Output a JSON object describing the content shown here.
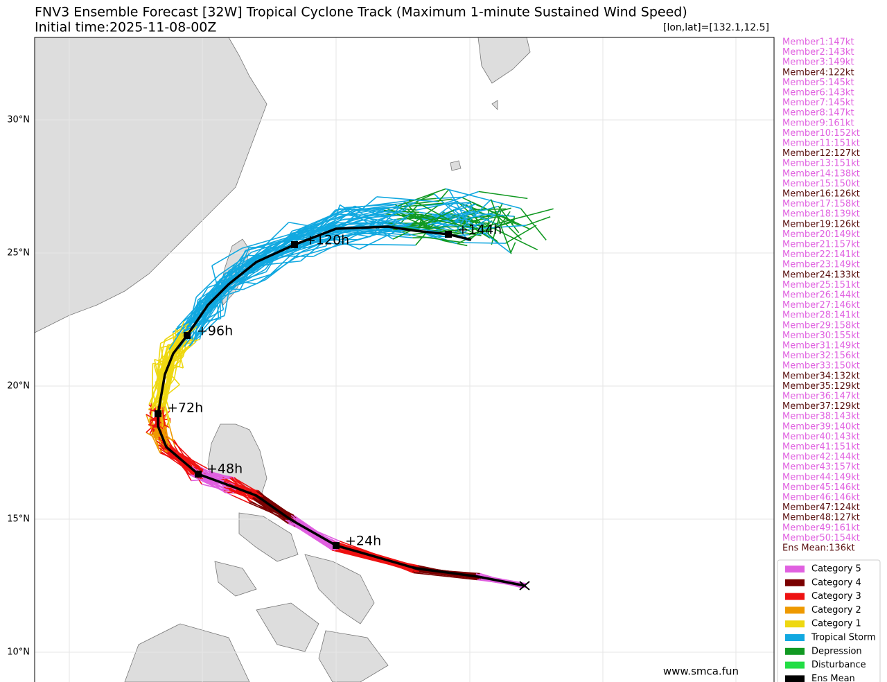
{
  "header": {
    "title": "FNV3 Ensemble Forecast [32W] Tropical Cyclone Track (Maximum 1-minute Sustained Wind Speed)",
    "subtitle": "Initial time:2025-11-08-00Z",
    "coords": "[lon,lat]=[132.1,12.5]"
  },
  "lat_labels": [
    "30°N",
    "25°N",
    "20°N",
    "15°N",
    "10°N"
  ],
  "track_labels": [
    "+24h",
    "+48h",
    "+72h",
    "+96h",
    "+120h",
    "+144h"
  ],
  "members": [
    {
      "text": "Member1:147kt",
      "color": "#e060e0"
    },
    {
      "text": "Member2:143kt",
      "color": "#e060e0"
    },
    {
      "text": "Member3:149kt",
      "color": "#e060e0"
    },
    {
      "text": "Member4:122kt",
      "color": "#5a1010"
    },
    {
      "text": "Member5:145kt",
      "color": "#e060e0"
    },
    {
      "text": "Member6:143kt",
      "color": "#e060e0"
    },
    {
      "text": "Member7:145kt",
      "color": "#e060e0"
    },
    {
      "text": "Member8:147kt",
      "color": "#e060e0"
    },
    {
      "text": "Member9:161kt",
      "color": "#e060e0"
    },
    {
      "text": "Member10:152kt",
      "color": "#e060e0"
    },
    {
      "text": "Member11:151kt",
      "color": "#e060e0"
    },
    {
      "text": "Member12:127kt",
      "color": "#5a1010"
    },
    {
      "text": "Member13:151kt",
      "color": "#e060e0"
    },
    {
      "text": "Member14:138kt",
      "color": "#e060e0"
    },
    {
      "text": "Member15:150kt",
      "color": "#e060e0"
    },
    {
      "text": "Member16:126kt",
      "color": "#5a1010"
    },
    {
      "text": "Member17:158kt",
      "color": "#e060e0"
    },
    {
      "text": "Member18:139kt",
      "color": "#e060e0"
    },
    {
      "text": "Member19:126kt",
      "color": "#5a1010"
    },
    {
      "text": "Member20:149kt",
      "color": "#e060e0"
    },
    {
      "text": "Member21:157kt",
      "color": "#e060e0"
    },
    {
      "text": "Member22:141kt",
      "color": "#e060e0"
    },
    {
      "text": "Member23:149kt",
      "color": "#e060e0"
    },
    {
      "text": "Member24:133kt",
      "color": "#5a1010"
    },
    {
      "text": "Member25:151kt",
      "color": "#e060e0"
    },
    {
      "text": "Member26:144kt",
      "color": "#e060e0"
    },
    {
      "text": "Member27:146kt",
      "color": "#e060e0"
    },
    {
      "text": "Member28:141kt",
      "color": "#e060e0"
    },
    {
      "text": "Member29:158kt",
      "color": "#e060e0"
    },
    {
      "text": "Member30:155kt",
      "color": "#e060e0"
    },
    {
      "text": "Member31:149kt",
      "color": "#e060e0"
    },
    {
      "text": "Member32:156kt",
      "color": "#e060e0"
    },
    {
      "text": "Member33:150kt",
      "color": "#e060e0"
    },
    {
      "text": "Member34:132kt",
      "color": "#5a1010"
    },
    {
      "text": "Member35:129kt",
      "color": "#5a1010"
    },
    {
      "text": "Member36:147kt",
      "color": "#e060e0"
    },
    {
      "text": "Member37:129kt",
      "color": "#5a1010"
    },
    {
      "text": "Member38:143kt",
      "color": "#e060e0"
    },
    {
      "text": "Member39:140kt",
      "color": "#e060e0"
    },
    {
      "text": "Member40:143kt",
      "color": "#e060e0"
    },
    {
      "text": "Member41:151kt",
      "color": "#e060e0"
    },
    {
      "text": "Member42:144kt",
      "color": "#e060e0"
    },
    {
      "text": "Member43:157kt",
      "color": "#e060e0"
    },
    {
      "text": "Member44:149kt",
      "color": "#e060e0"
    },
    {
      "text": "Member45:146kt",
      "color": "#e060e0"
    },
    {
      "text": "Member46:146kt",
      "color": "#e060e0"
    },
    {
      "text": "Member47:124kt",
      "color": "#5a1010"
    },
    {
      "text": "Member48:127kt",
      "color": "#5a1010"
    },
    {
      "text": "Member49:161kt",
      "color": "#e060e0"
    },
    {
      "text": "Member50:154kt",
      "color": "#e060e0"
    }
  ],
  "ens_mean": {
    "text": "Ens Mean:136kt",
    "color": "#5a1010"
  },
  "legend": [
    {
      "label": "Category 5",
      "color": "#e060e0"
    },
    {
      "label": "Category 4",
      "color": "#7a0000"
    },
    {
      "label": "Category 3",
      "color": "#ee1111"
    },
    {
      "label": "Category 2",
      "color": "#ee9900"
    },
    {
      "label": "Category 1",
      "color": "#eed811"
    },
    {
      "label": "Tropical Storm",
      "color": "#11a8e0"
    },
    {
      "label": "Depression",
      "color": "#119922"
    },
    {
      "label": "Disturbance",
      "color": "#22dd44"
    },
    {
      "label": "Ens Mean",
      "color": "#000000"
    }
  ],
  "watermark": "www.smca.fun"
}
